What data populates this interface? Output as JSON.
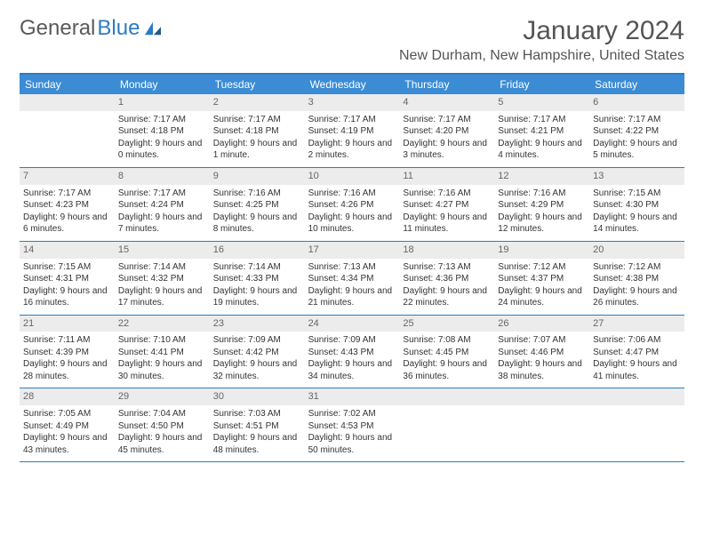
{
  "logo": {
    "text1": "General",
    "text2": "Blue"
  },
  "title": "January 2024",
  "location": "New Durham, New Hampshire, United States",
  "weekday_bg": "#3b8cd4",
  "border_color": "#2b7cc4",
  "daynum_bg": "#ececec",
  "weekdays": [
    "Sunday",
    "Monday",
    "Tuesday",
    "Wednesday",
    "Thursday",
    "Friday",
    "Saturday"
  ],
  "start_offset": 1,
  "days": [
    {
      "n": 1,
      "sunrise": "7:17 AM",
      "sunset": "4:18 PM",
      "daylight": "9 hours and 0 minutes."
    },
    {
      "n": 2,
      "sunrise": "7:17 AM",
      "sunset": "4:18 PM",
      "daylight": "9 hours and 1 minute."
    },
    {
      "n": 3,
      "sunrise": "7:17 AM",
      "sunset": "4:19 PM",
      "daylight": "9 hours and 2 minutes."
    },
    {
      "n": 4,
      "sunrise": "7:17 AM",
      "sunset": "4:20 PM",
      "daylight": "9 hours and 3 minutes."
    },
    {
      "n": 5,
      "sunrise": "7:17 AM",
      "sunset": "4:21 PM",
      "daylight": "9 hours and 4 minutes."
    },
    {
      "n": 6,
      "sunrise": "7:17 AM",
      "sunset": "4:22 PM",
      "daylight": "9 hours and 5 minutes."
    },
    {
      "n": 7,
      "sunrise": "7:17 AM",
      "sunset": "4:23 PM",
      "daylight": "9 hours and 6 minutes."
    },
    {
      "n": 8,
      "sunrise": "7:17 AM",
      "sunset": "4:24 PM",
      "daylight": "9 hours and 7 minutes."
    },
    {
      "n": 9,
      "sunrise": "7:16 AM",
      "sunset": "4:25 PM",
      "daylight": "9 hours and 8 minutes."
    },
    {
      "n": 10,
      "sunrise": "7:16 AM",
      "sunset": "4:26 PM",
      "daylight": "9 hours and 10 minutes."
    },
    {
      "n": 11,
      "sunrise": "7:16 AM",
      "sunset": "4:27 PM",
      "daylight": "9 hours and 11 minutes."
    },
    {
      "n": 12,
      "sunrise": "7:16 AM",
      "sunset": "4:29 PM",
      "daylight": "9 hours and 12 minutes."
    },
    {
      "n": 13,
      "sunrise": "7:15 AM",
      "sunset": "4:30 PM",
      "daylight": "9 hours and 14 minutes."
    },
    {
      "n": 14,
      "sunrise": "7:15 AM",
      "sunset": "4:31 PM",
      "daylight": "9 hours and 16 minutes."
    },
    {
      "n": 15,
      "sunrise": "7:14 AM",
      "sunset": "4:32 PM",
      "daylight": "9 hours and 17 minutes."
    },
    {
      "n": 16,
      "sunrise": "7:14 AM",
      "sunset": "4:33 PM",
      "daylight": "9 hours and 19 minutes."
    },
    {
      "n": 17,
      "sunrise": "7:13 AM",
      "sunset": "4:34 PM",
      "daylight": "9 hours and 21 minutes."
    },
    {
      "n": 18,
      "sunrise": "7:13 AM",
      "sunset": "4:36 PM",
      "daylight": "9 hours and 22 minutes."
    },
    {
      "n": 19,
      "sunrise": "7:12 AM",
      "sunset": "4:37 PM",
      "daylight": "9 hours and 24 minutes."
    },
    {
      "n": 20,
      "sunrise": "7:12 AM",
      "sunset": "4:38 PM",
      "daylight": "9 hours and 26 minutes."
    },
    {
      "n": 21,
      "sunrise": "7:11 AM",
      "sunset": "4:39 PM",
      "daylight": "9 hours and 28 minutes."
    },
    {
      "n": 22,
      "sunrise": "7:10 AM",
      "sunset": "4:41 PM",
      "daylight": "9 hours and 30 minutes."
    },
    {
      "n": 23,
      "sunrise": "7:09 AM",
      "sunset": "4:42 PM",
      "daylight": "9 hours and 32 minutes."
    },
    {
      "n": 24,
      "sunrise": "7:09 AM",
      "sunset": "4:43 PM",
      "daylight": "9 hours and 34 minutes."
    },
    {
      "n": 25,
      "sunrise": "7:08 AM",
      "sunset": "4:45 PM",
      "daylight": "9 hours and 36 minutes."
    },
    {
      "n": 26,
      "sunrise": "7:07 AM",
      "sunset": "4:46 PM",
      "daylight": "9 hours and 38 minutes."
    },
    {
      "n": 27,
      "sunrise": "7:06 AM",
      "sunset": "4:47 PM",
      "daylight": "9 hours and 41 minutes."
    },
    {
      "n": 28,
      "sunrise": "7:05 AM",
      "sunset": "4:49 PM",
      "daylight": "9 hours and 43 minutes."
    },
    {
      "n": 29,
      "sunrise": "7:04 AM",
      "sunset": "4:50 PM",
      "daylight": "9 hours and 45 minutes."
    },
    {
      "n": 30,
      "sunrise": "7:03 AM",
      "sunset": "4:51 PM",
      "daylight": "9 hours and 48 minutes."
    },
    {
      "n": 31,
      "sunrise": "7:02 AM",
      "sunset": "4:53 PM",
      "daylight": "9 hours and 50 minutes."
    }
  ],
  "labels": {
    "sunrise": "Sunrise:",
    "sunset": "Sunset:",
    "daylight": "Daylight:"
  }
}
